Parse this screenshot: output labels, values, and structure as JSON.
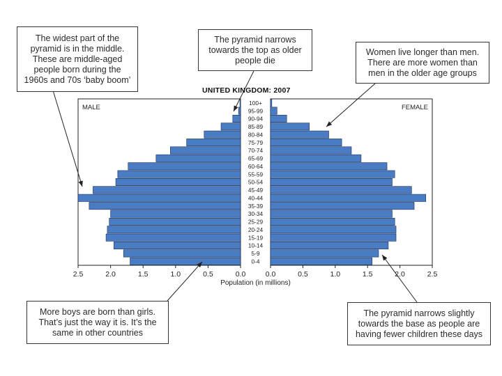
{
  "annotations": {
    "widest": "The widest part of the pyramid is in the middle. These are middle-aged people born during the 1960s and 70s ‘baby boom’",
    "narrows_top": "The pyramid narrows towards the top as older people die",
    "women": "Women live longer than men. There are more women than men in the older age groups",
    "boys": "More boys are born than girls. That’s just the way it is. It’s the same in other countries",
    "narrows_base": "The pyramid narrows slightly towards the base as people are having fewer children these days"
  },
  "colors": {
    "bar": "#4a7cc4",
    "bar_edge": "#1b2f5a",
    "axis": "#222222"
  },
  "chart_data": {
    "type": "bar",
    "orientation": "horizontal-pyramid",
    "title": "UNITED KINGDOM: 2007",
    "left_label": "MALE",
    "right_label": "FEMALE",
    "xlabel": "Population (in millions)",
    "xlim": [
      0,
      2.5
    ],
    "x_ticks_left": [
      "2.5",
      "2.0",
      "1.5",
      "1.0",
      "0.5",
      "0.0"
    ],
    "x_ticks_right": [
      "0.0",
      "0.5",
      "1.0",
      "1.5",
      "2.0",
      "2.5"
    ],
    "categories": [
      "100+",
      "95-99",
      "90-94",
      "85-89",
      "80-84",
      "75-79",
      "70-74",
      "65-69",
      "60-64",
      "55-59",
      "50-54",
      "45-49",
      "40-44",
      "35-39",
      "30-34",
      "25-29",
      "20-24",
      "15-19",
      "10-14",
      "5-9",
      "0-4"
    ],
    "series": [
      {
        "name": "MALE",
        "values": [
          0.01,
          0.03,
          0.12,
          0.3,
          0.56,
          0.83,
          1.08,
          1.3,
          1.73,
          1.89,
          1.92,
          2.27,
          2.5,
          2.33,
          2.0,
          2.02,
          2.05,
          2.07,
          1.95,
          1.8,
          1.7
        ]
      },
      {
        "name": "FEMALE",
        "values": [
          0.02,
          0.1,
          0.25,
          0.6,
          0.9,
          1.1,
          1.25,
          1.4,
          1.8,
          1.92,
          1.88,
          2.18,
          2.4,
          2.22,
          1.88,
          1.92,
          1.94,
          1.94,
          1.82,
          1.67,
          1.57
        ]
      }
    ]
  }
}
